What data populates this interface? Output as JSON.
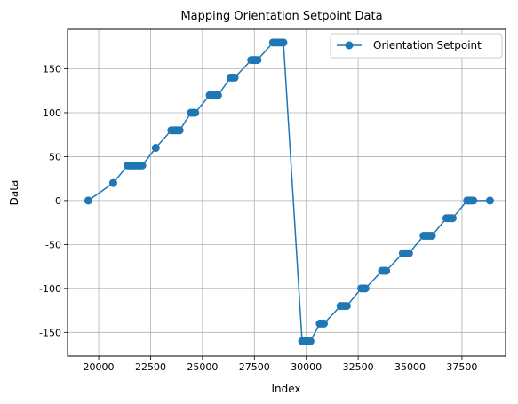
{
  "chart_data": {
    "type": "line",
    "title": "Mapping Orientation Setpoint Data",
    "xlabel": "Index",
    "ylabel": "Data",
    "xlim": [
      18500,
      39600
    ],
    "ylim": [
      -177,
      195
    ],
    "xticks": [
      20000,
      22500,
      25000,
      27500,
      30000,
      32500,
      35000,
      37500
    ],
    "yticks": [
      -150,
      -100,
      -50,
      0,
      50,
      100,
      150
    ],
    "grid": true,
    "legend_position": "top-right",
    "series": [
      {
        "name": "Orientation Setpoint",
        "color": "#1f77b4",
        "marker": "circle",
        "x": [
          19500,
          20700,
          21400,
          21500,
          21600,
          21700,
          21800,
          21900,
          22000,
          22100,
          22750,
          23500,
          23600,
          23700,
          23800,
          23900,
          24450,
          24550,
          24650,
          25350,
          25450,
          25550,
          25650,
          25750,
          26350,
          26450,
          26550,
          27350,
          27450,
          27550,
          27650,
          28400,
          28500,
          28600,
          28700,
          28800,
          28900,
          29800,
          29900,
          30000,
          30100,
          30200,
          30650,
          30750,
          30850,
          31650,
          31750,
          31850,
          31950,
          32650,
          32750,
          32850,
          33650,
          33750,
          33850,
          34650,
          34750,
          34850,
          34950,
          35650,
          35750,
          35850,
          35950,
          36050,
          36750,
          36850,
          36950,
          37050,
          37750,
          37850,
          37950,
          38050,
          38850
        ],
        "y": [
          0,
          20,
          40,
          40,
          40,
          40,
          40,
          40,
          40,
          40,
          60,
          80,
          80,
          80,
          80,
          80,
          100,
          100,
          100,
          120,
          120,
          120,
          120,
          120,
          140,
          140,
          140,
          160,
          160,
          160,
          160,
          180,
          180,
          180,
          180,
          180,
          180,
          -160,
          -160,
          -160,
          -160,
          -160,
          -140,
          -140,
          -140,
          -120,
          -120,
          -120,
          -120,
          -100,
          -100,
          -100,
          -80,
          -80,
          -80,
          -60,
          -60,
          -60,
          -60,
          -40,
          -40,
          -40,
          -40,
          -40,
          -20,
          -20,
          -20,
          -20,
          0,
          0,
          0,
          0,
          0
        ]
      }
    ]
  }
}
